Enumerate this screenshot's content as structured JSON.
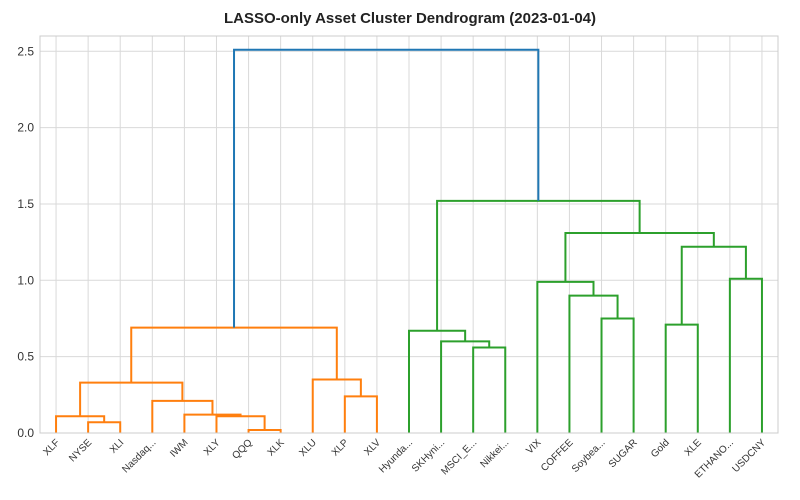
{
  "chart_data": {
    "type": "dendrogram",
    "title": "LASSO-only Asset Cluster Dendrogram (2023-01-04)",
    "xlabel": "",
    "ylabel": "",
    "ylim": [
      0,
      2.6
    ],
    "yticks": [
      "0.0",
      "0.5",
      "1.0",
      "1.5",
      "2.0",
      "2.5"
    ],
    "grid": true,
    "leaves": [
      "XLF",
      "NYSE",
      "XLI",
      "Nasdaq...",
      "IWM",
      "XLY",
      "QQQ",
      "XLK",
      "XLU",
      "XLP",
      "XLV",
      "Hyunda...",
      "SKHyni...",
      "MSCI_E...",
      "Nikkei...",
      "VIX",
      "COFFEE",
      "Soybea...",
      "SUGAR",
      "Gold",
      "XLE",
      "ETHANO...",
      "USDCNY"
    ],
    "colors": {
      "cluster1": "#ff7f0e",
      "cluster2": "#2ca02c",
      "root": "#1f77b4"
    },
    "merges": [
      {
        "a": 1,
        "b": 2,
        "height": 0.07,
        "cluster": "cluster1"
      },
      {
        "a": 0,
        "b": "m0",
        "height": 0.11,
        "cluster": "cluster1"
      },
      {
        "a": 6,
        "b": 7,
        "height": 0.02,
        "cluster": "cluster1"
      },
      {
        "a": 5,
        "b": "m2",
        "height": 0.11,
        "cluster": "cluster1"
      },
      {
        "a": 4,
        "b": "m3",
        "height": 0.12,
        "cluster": "cluster1"
      },
      {
        "a": 3,
        "b": "m4",
        "height": 0.21,
        "cluster": "cluster1"
      },
      {
        "a": "m1",
        "b": "m5",
        "height": 0.33,
        "cluster": "cluster1"
      },
      {
        "a": 9,
        "b": 10,
        "height": 0.24,
        "cluster": "cluster1"
      },
      {
        "a": 8,
        "b": "m7",
        "height": 0.35,
        "cluster": "cluster1"
      },
      {
        "a": "m6",
        "b": "m8",
        "height": 0.69,
        "cluster": "cluster1"
      },
      {
        "a": 13,
        "b": 14,
        "height": 0.56,
        "cluster": "cluster2"
      },
      {
        "a": 12,
        "b": "m10",
        "height": 0.6,
        "cluster": "cluster2"
      },
      {
        "a": 11,
        "b": "m11",
        "height": 0.67,
        "cluster": "cluster2"
      },
      {
        "a": 17,
        "b": 18,
        "height": 0.75,
        "cluster": "cluster2"
      },
      {
        "a": 16,
        "b": "m13",
        "height": 0.9,
        "cluster": "cluster2"
      },
      {
        "a": 15,
        "b": "m14",
        "height": 0.99,
        "cluster": "cluster2"
      },
      {
        "a": 19,
        "b": 20,
        "height": 0.71,
        "cluster": "cluster2"
      },
      {
        "a": 21,
        "b": 22,
        "height": 1.01,
        "cluster": "cluster2"
      },
      {
        "a": "m16",
        "b": "m17",
        "height": 1.22,
        "cluster": "cluster2"
      },
      {
        "a": "m15",
        "b": "m18",
        "height": 1.31,
        "cluster": "cluster2"
      },
      {
        "a": "m12",
        "b": "m19",
        "height": 1.52,
        "cluster": "cluster2"
      },
      {
        "a": "m9",
        "b": "m20",
        "height": 2.51,
        "cluster": "root"
      }
    ]
  }
}
